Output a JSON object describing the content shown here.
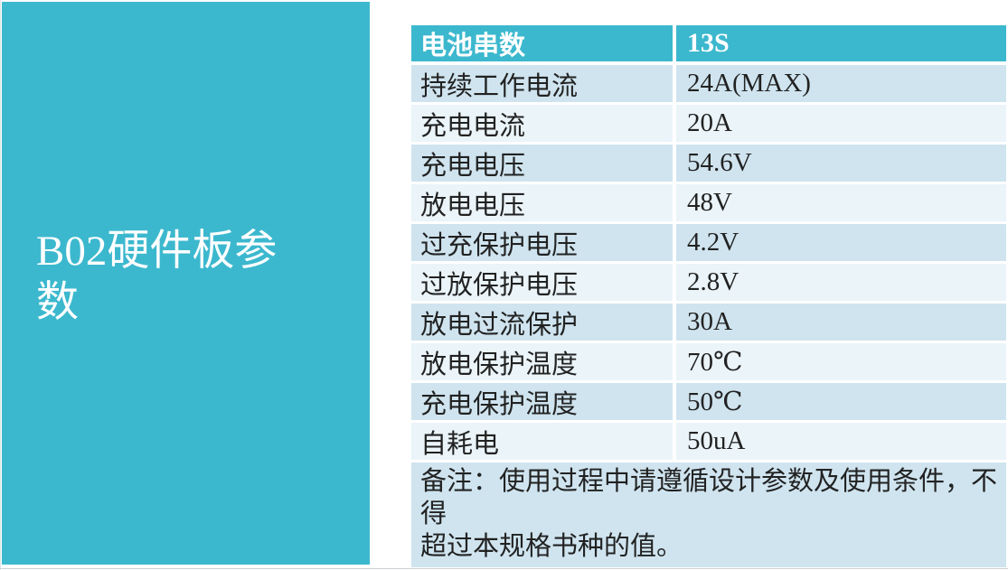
{
  "slide": {
    "title_lines": [
      "B02硬件板参",
      "数"
    ],
    "accent_color": "#3cb8ce"
  },
  "table": {
    "header": {
      "label": "电池串数",
      "value": "13S"
    },
    "rows": [
      {
        "label": "持续工作电流",
        "value": "24A(MAX)"
      },
      {
        "label": "充电电流",
        "value": "20A"
      },
      {
        "label": "充电电压",
        "value": "54.6V"
      },
      {
        "label": "放电电压",
        "value": "48V"
      },
      {
        "label": "过充保护电压",
        "value": "4.2V"
      },
      {
        "label": "过放保护电压",
        "value": "2.8V"
      },
      {
        "label": "放电过流保护",
        "value": "30A"
      },
      {
        "label": "放电保护温度",
        "value": "70℃"
      },
      {
        "label": "充电保护温度",
        "value": "50℃"
      },
      {
        "label": "自耗电",
        "value": "50uA"
      }
    ],
    "note_lines": [
      "备注：使用过程中请遵循设计参数及使用条件，不得",
      "超过本规格书种的值。"
    ],
    "colors": {
      "header_bg": "#3cb8ce",
      "band_dark": "#cfe4ef",
      "band_light": "#eaf4f9"
    }
  }
}
